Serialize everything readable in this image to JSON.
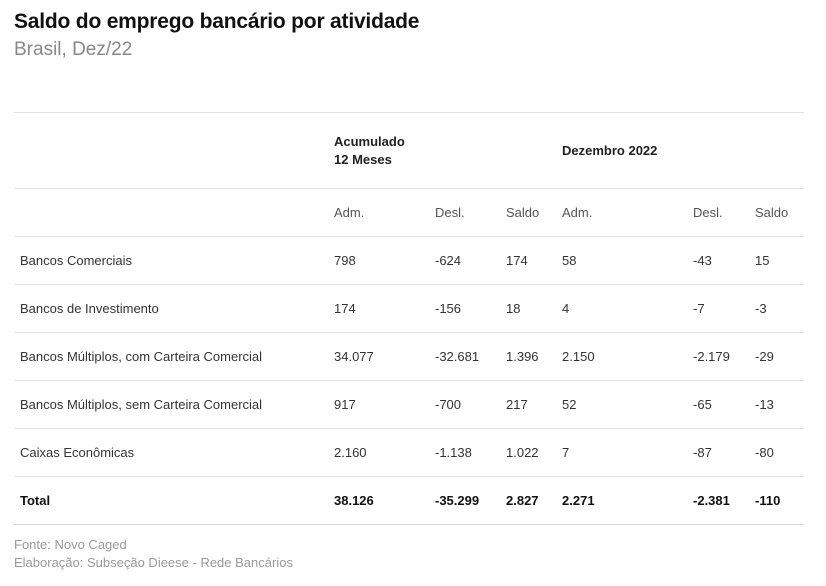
{
  "header": {
    "title": "Saldo do emprego bancário por atividade",
    "subtitle": "Brasil, Dez/22"
  },
  "table": {
    "groups": {
      "accum_line1": "Acumulado",
      "accum_line2": "12 Meses",
      "dec": "Dezembro 2022"
    },
    "subheaders": [
      "Adm.",
      "Desl.",
      "Saldo",
      "Adm.",
      "Desl.",
      "Saldo"
    ],
    "rows": [
      {
        "label": "Bancos Comerciais",
        "values": [
          "798",
          "-624",
          "174",
          "58",
          "-43",
          "15"
        ]
      },
      {
        "label": "Bancos de Investimento",
        "values": [
          "174",
          "-156",
          "18",
          "4",
          "-7",
          "-3"
        ]
      },
      {
        "label": "Bancos Múltiplos, com Carteira Comercial",
        "values": [
          "34.077",
          "-32.681",
          "1.396",
          "2.150",
          "-2.179",
          "-29"
        ]
      },
      {
        "label": "Bancos Múltiplos, sem Carteira Comercial",
        "values": [
          "917",
          "-700",
          "217",
          "52",
          "-65",
          "-13"
        ]
      },
      {
        "label": "Caixas Econômicas",
        "values": [
          "2.160",
          "-1.138",
          "1.022",
          "7",
          "-87",
          "-80"
        ]
      },
      {
        "label": "Total",
        "values": [
          "38.126",
          "-35.299",
          "2.827",
          "2.271",
          "-2.381",
          "-110"
        ]
      }
    ]
  },
  "footer": {
    "source": "Fonte: Novo Caged",
    "credit": "Elaboração: Subseção Dieese - Rede Bancários"
  }
}
